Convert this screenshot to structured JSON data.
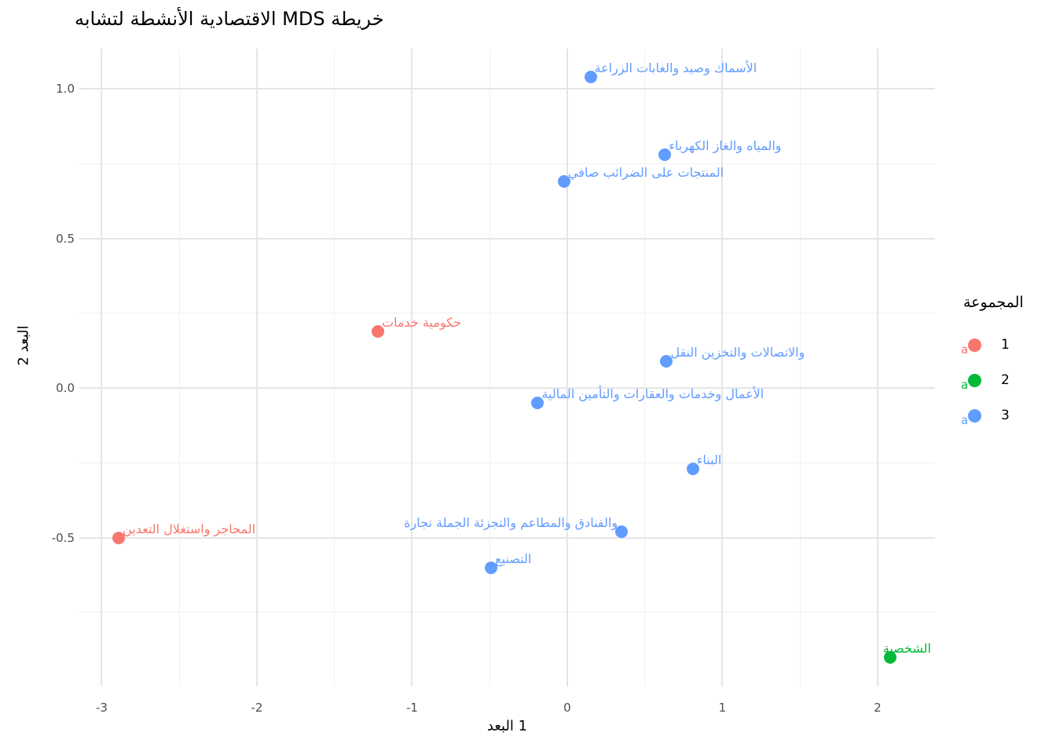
{
  "title": "لتشابه الأنشطة الاقتصادية MDS خريطة",
  "axes": {
    "x_title": "البعد 1",
    "y_title": "2 البعد",
    "x_tick_labels": [
      "-3",
      "-2",
      "-1",
      "0",
      "1",
      "2"
    ],
    "y_tick_labels": [
      "1.0",
      "0.5",
      "0.0",
      "-0.5"
    ]
  },
  "legend": {
    "title": "المجموعة",
    "key_glyph": "a",
    "entries": [
      {
        "label": "1",
        "color": "#F8766D"
      },
      {
        "label": "2",
        "color": "#00BA38"
      },
      {
        "label": "3",
        "color": "#619CFF"
      }
    ]
  },
  "colors": {
    "group_1": "#F8766D",
    "group_2": "#00BA38",
    "group_3": "#619CFF",
    "grid_major": "#e5e5e5",
    "grid_minor": "#f0f0f0",
    "tick_text": "#4d4d4d"
  },
  "chart_data": {
    "type": "scatter",
    "title": "لتشابه الأنشطة الاقتصادية MDS خريطة",
    "xlabel": "البعد 1",
    "ylabel": "البعد 2",
    "xlim": [
      -3.144,
      2.37
    ],
    "ylim": [
      -0.997,
      1.134
    ],
    "grid": true,
    "legend_position": "right",
    "x_major_ticks": [
      -3,
      -2,
      -1,
      0,
      1,
      2
    ],
    "x_minor_ticks": [
      -2.5,
      -1.5,
      -0.5,
      0.5,
      1.5
    ],
    "y_major_ticks": [
      1.0,
      0.5,
      0.0,
      -0.5
    ],
    "y_minor_ticks": [
      0.75,
      0.25,
      -0.25,
      -0.75
    ],
    "series_name": "المجموعة",
    "points": [
      {
        "label": "الزراعة والغابات وصيد الأسماك",
        "x": 0.15,
        "y": 1.04,
        "group": 3,
        "anchor": "start"
      },
      {
        "label": "الكهرباء والغاز والمياه",
        "x": 0.63,
        "y": 0.78,
        "group": 3,
        "anchor": "start"
      },
      {
        "label": "صافي الضرائب على المنتجات",
        "x": -0.02,
        "y": 0.69,
        "group": 3,
        "anchor": "start"
      },
      {
        "label": "خدمات حكومية",
        "x": -1.22,
        "y": 0.19,
        "group": 1,
        "anchor": "start"
      },
      {
        "label": "النقل والتخزين والاتصالات",
        "x": 0.64,
        "y": 0.09,
        "group": 3,
        "anchor": "start"
      },
      {
        "label": "المالية والتأمين والعقارات وخدمات الأعمال",
        "x": -0.19,
        "y": -0.05,
        "group": 3,
        "anchor": "start"
      },
      {
        "label": "البناء",
        "x": 0.81,
        "y": -0.27,
        "group": 3,
        "anchor": "start"
      },
      {
        "label": "تجارة الجملة والتجزئة والمطاعم والفنادق",
        "x": 0.35,
        "y": -0.48,
        "group": 3,
        "anchor": "end"
      },
      {
        "label": "التصنيع",
        "x": -0.49,
        "y": -0.6,
        "group": 3,
        "anchor": "start"
      },
      {
        "label": "التعدين واستغلال المحاجر",
        "x": -2.89,
        "y": -0.5,
        "group": 1,
        "anchor": "start"
      },
      {
        "label": "الشخصية",
        "x": 2.08,
        "y": -0.9,
        "group": 2,
        "anchor": "start",
        "label_dx": -9
      }
    ]
  }
}
